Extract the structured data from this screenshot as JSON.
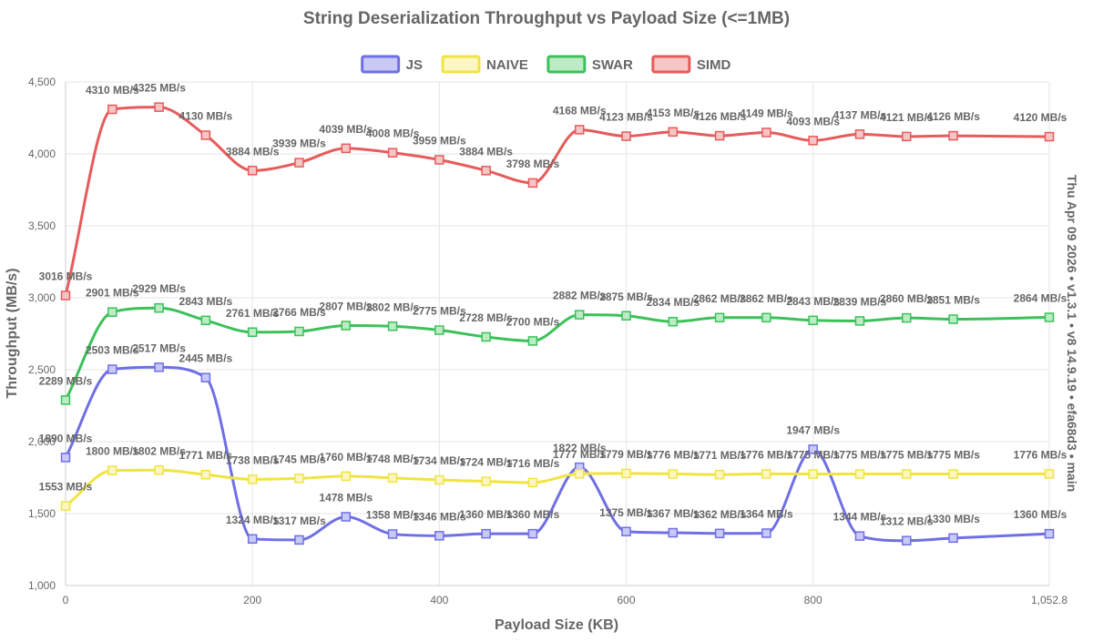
{
  "chart_data": {
    "type": "line",
    "title": "String Deserialization Throughput vs Payload Size (<=1MB)",
    "xlabel": "Payload Size (KB)",
    "ylabel": "Throughput (MB/s)",
    "side_note": "Thu Apr 09 2026 • v1.3.1 • v8 14.9.19 • efa68d3 • main",
    "xlim": [
      0,
      1052.8
    ],
    "ylim": [
      1000,
      4500
    ],
    "x_ticks": [
      {
        "value": 0,
        "label": "0"
      },
      {
        "value": 200,
        "label": "200"
      },
      {
        "value": 400,
        "label": "400"
      },
      {
        "value": 600,
        "label": "600"
      },
      {
        "value": 800,
        "label": "800"
      },
      {
        "value": 1052.8,
        "label": "1,052.8"
      }
    ],
    "y_ticks": [
      {
        "value": 1000,
        "label": "1,000"
      },
      {
        "value": 1500,
        "label": "1,500"
      },
      {
        "value": 2000,
        "label": "2,000"
      },
      {
        "value": 2500,
        "label": "2,500"
      },
      {
        "value": 3000,
        "label": "3,000"
      },
      {
        "value": 3500,
        "label": "3,500"
      },
      {
        "value": 4000,
        "label": "4,000"
      },
      {
        "value": 4500,
        "label": "4,500"
      }
    ],
    "x": [
      0,
      50,
      100,
      150,
      200,
      250,
      300,
      350,
      400,
      450,
      500,
      550,
      600,
      650,
      700,
      750,
      800,
      850,
      900,
      950,
      1052.8
    ],
    "series": [
      {
        "name": "JS",
        "color": "#6f6fe6",
        "fill": "#c9c9f5",
        "values": [
          1890,
          2503,
          2517,
          2445,
          1324,
          1317,
          1478,
          1358,
          1346,
          1360,
          1360,
          1822,
          1375,
          1367,
          1362,
          1364,
          1947,
          1344,
          1312,
          1330,
          1360
        ],
        "labels": [
          "1890 MB/s",
          "2503 MB/s",
          "2517 MB/s",
          "2445 MB/s",
          "1324 MB/s",
          "1317 MB/s",
          "1478 MB/s",
          "1358 MB/s",
          "1346 MB/s",
          "1360 MB/s",
          "1360 MB/s",
          "1822 MB/s",
          "1375 MB/s",
          "1367 MB/s",
          "1362 MB/s",
          "1364 MB/s",
          "1947 MB/s",
          "1344 MB/s",
          "1312 MB/s",
          "1330 MB/s",
          "1360 MB/s"
        ]
      },
      {
        "name": "NAIVE",
        "color": "#f0e442",
        "fill": "#fbf6c2",
        "values": [
          1553,
          1800,
          1802,
          1771,
          1738,
          1745,
          1760,
          1748,
          1734,
          1724,
          1716,
          1777,
          1779,
          1776,
          1771,
          1776,
          1775,
          1775,
          1775,
          1775,
          1776
        ],
        "labels": [
          "1553 MB/s",
          "1800 MB/s",
          "1802 MB/s",
          "1771 MB/s",
          "1738 MB/s",
          "1745 MB/s",
          "1760 MB/s",
          "1748 MB/s",
          "1734 MB/s",
          "1724 MB/s",
          "1716 MB/s",
          "1777 MB/s",
          "1779 MB/s",
          "1776 MB/s",
          "1771 MB/s",
          "1776 MB/s",
          "1775 MB/s",
          "1775 MB/s",
          "1775 MB/s",
          "1775 MB/s",
          "1776 MB/s"
        ]
      },
      {
        "name": "SWAR",
        "color": "#3cc15a",
        "fill": "#bcebc6",
        "values": [
          2289,
          2901,
          2929,
          2843,
          2761,
          2766,
          2807,
          2802,
          2775,
          2728,
          2700,
          2882,
          2875,
          2834,
          2862,
          2862,
          2843,
          2839,
          2860,
          2851,
          2864
        ],
        "labels": [
          "2289 MB/s",
          "2901 MB/s",
          "2929 MB/s",
          "2843 MB/s",
          "2761 MB/s",
          "2766 MB/s",
          "2807 MB/s",
          "2802 MB/s",
          "2775 MB/s",
          "2728 MB/s",
          "2700 MB/s",
          "2882 MB/s",
          "2875 MB/s",
          "2834 MB/s",
          "2862 MB/s",
          "2862 MB/s",
          "2843 MB/s",
          "2839 MB/s",
          "2860 MB/s",
          "2851 MB/s",
          "2864 MB/s"
        ]
      },
      {
        "name": "SIMD",
        "color": "#e65b5b",
        "fill": "#f6c5c5",
        "values": [
          3016,
          4310,
          4325,
          4130,
          3884,
          3939,
          4039,
          4008,
          3959,
          3884,
          3798,
          4168,
          4123,
          4153,
          4126,
          4149,
          4093,
          4137,
          4121,
          4126,
          4120
        ],
        "labels": [
          "3016 MB/s",
          "4310 MB/s",
          "4325 MB/s",
          "4130 MB/s",
          "3884 MB/s",
          "3939 MB/s",
          "4039 MB/s",
          "4008 MB/s",
          "3959 MB/s",
          "3884 MB/s",
          "3798 MB/s",
          "4168 MB/s",
          "4123 MB/s",
          "4153 MB/s",
          "4126 MB/s",
          "4149 MB/s",
          "4093 MB/s",
          "4137 MB/s",
          "4121 MB/s",
          "4126 MB/s",
          "4120 MB/s"
        ]
      }
    ],
    "legend": {
      "position": "top"
    },
    "grid": true
  }
}
